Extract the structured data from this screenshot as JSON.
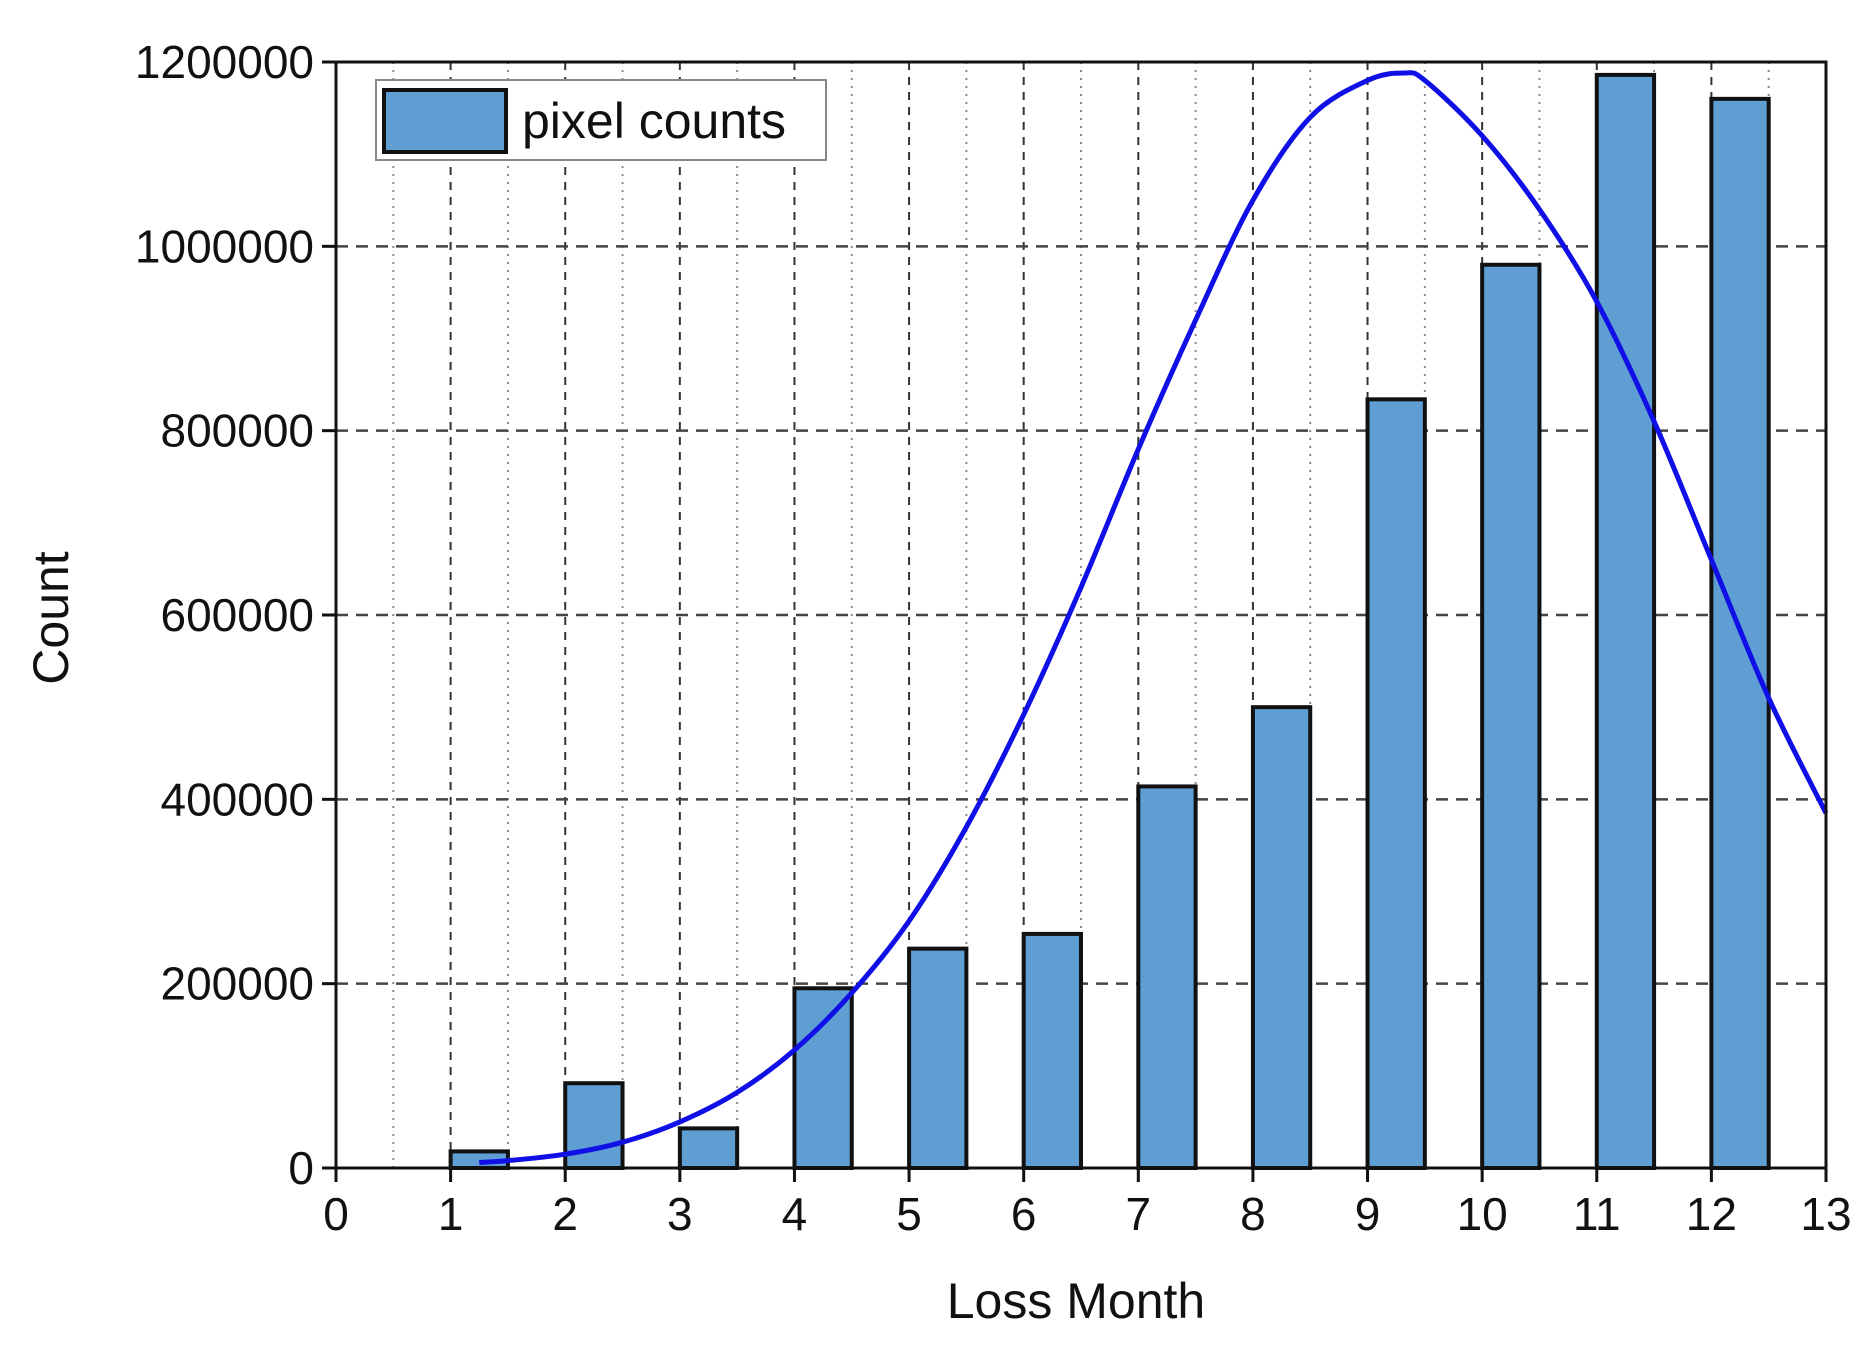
{
  "chart_data": {
    "type": "bar",
    "xlabel": "Loss Month",
    "ylabel": "Count",
    "xlim": [
      0,
      13
    ],
    "ylim": [
      0,
      1200000
    ],
    "x_ticks": [
      0,
      1,
      2,
      3,
      4,
      5,
      6,
      7,
      8,
      9,
      10,
      11,
      12,
      13
    ],
    "y_ticks": [
      0,
      200000,
      400000,
      600000,
      800000,
      1000000,
      1200000
    ],
    "grid": true,
    "legend_position": "top-left",
    "series": [
      {
        "name": "pixel counts",
        "type": "bar",
        "color": "#5f9ed3",
        "x": [
          1,
          2,
          3,
          4,
          5,
          6,
          7,
          8,
          9,
          10,
          11,
          12
        ],
        "values": [
          18000,
          92000,
          43000,
          195000,
          238000,
          254000,
          414000,
          500000,
          834000,
          980000,
          1186000,
          1160000
        ]
      },
      {
        "type": "line",
        "color": "#1010e6",
        "x": [
          1.25,
          1.5,
          2,
          2.5,
          3,
          3.5,
          4,
          4.5,
          5,
          5.5,
          6,
          6.5,
          7,
          7.5,
          8,
          8.5,
          9,
          9.32,
          9.5,
          10,
          10.5,
          11,
          11.5,
          12,
          12.5,
          13
        ],
        "values": [
          6000,
          8000,
          15000,
          28000,
          50000,
          82000,
          128000,
          190000,
          268000,
          370000,
          492000,
          630000,
          780000,
          920000,
          1050000,
          1140000,
          1180000,
          1188000,
          1180000,
          1120000,
          1040000,
          940000,
          810000,
          660000,
          510000,
          385000
        ]
      }
    ]
  }
}
